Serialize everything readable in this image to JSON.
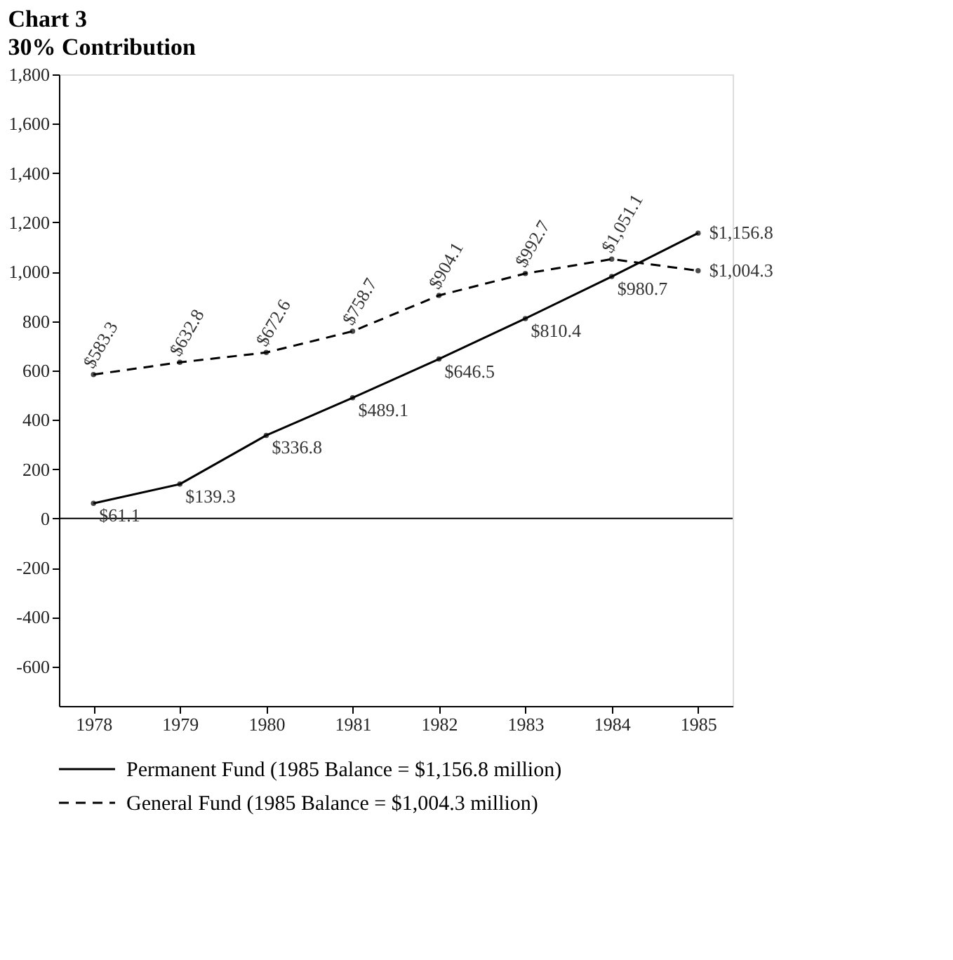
{
  "chart_data": {
    "type": "line",
    "title": "Chart 3",
    "subtitle": "30% Contribution",
    "categories": [
      "1978",
      "1979",
      "1980",
      "1981",
      "1982",
      "1983",
      "1984",
      "1985"
    ],
    "series": [
      {
        "name": "Permanent Fund (1985 Balance = $1,156.8 million)",
        "color": "#000000",
        "line_style": "solid",
        "values": [
          61.1,
          139.3,
          336.8,
          489.1,
          646.5,
          810.4,
          980.7,
          1156.8
        ],
        "value_labels": [
          "$61.1",
          "$139.3",
          "$336.8",
          "$489.1",
          "$646.5",
          "$810.4",
          "$980.7",
          "$1,156.8"
        ]
      },
      {
        "name": "General Fund (1985 Balance = $1,004.3 million)",
        "color": "#000000",
        "line_style": "dashed",
        "values": [
          583.3,
          632.8,
          672.6,
          758.7,
          904.1,
          992.7,
          1051.1,
          1004.3
        ],
        "value_labels": [
          "$583.3",
          "$632.8",
          "$672.6",
          "$758.7",
          "$904.1",
          "$992.7",
          "$1,051.1",
          "$1,004.3"
        ]
      }
    ],
    "ylim": [
      -760,
      1800
    ],
    "yticks": [
      {
        "value": -600,
        "label": "-600"
      },
      {
        "value": -400,
        "label": "-400"
      },
      {
        "value": -200,
        "label": "-200"
      },
      0,
      200,
      400,
      600,
      800,
      {
        "value": 1000,
        "label": "1,000"
      },
      {
        "value": 1200,
        "label": "1,200"
      },
      {
        "value": 1400,
        "label": "1,400"
      },
      {
        "value": 1600,
        "label": "1,600"
      },
      {
        "value": 1800,
        "label": "1,800"
      }
    ],
    "ref_lines": [
      {
        "axis": "y",
        "value": 0
      }
    ],
    "marker": "circle",
    "grid": false,
    "legend": "bottom"
  }
}
